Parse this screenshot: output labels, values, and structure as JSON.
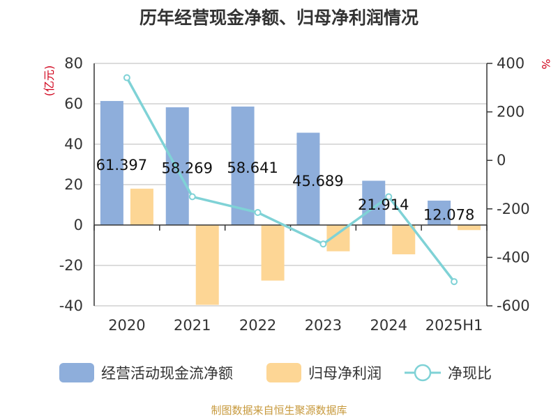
{
  "chart_data": {
    "type": "bar",
    "title": "历年经营现金净额、归母净利润情况",
    "left_axis_unit": "(亿元)",
    "right_axis_unit": "%",
    "categories": [
      "2020",
      "2021",
      "2022",
      "2023",
      "2024",
      "2025H1"
    ],
    "series": [
      {
        "name": "经营活动现金流净额",
        "type": "bar",
        "axis": "left",
        "values": [
          61.397,
          58.269,
          58.641,
          45.689,
          21.914,
          12.078
        ],
        "labels": [
          "61.397",
          "58.269",
          "58.641",
          "45.689",
          "21.914",
          "12.078"
        ]
      },
      {
        "name": "归母净利润",
        "type": "bar",
        "axis": "left",
        "values": [
          18.0,
          -39.5,
          -27.5,
          -13.0,
          -14.5,
          -2.5
        ]
      },
      {
        "name": "净现比",
        "type": "line",
        "axis": "right",
        "values": [
          341,
          -150,
          -215,
          -345,
          -150,
          -500
        ]
      }
    ],
    "left_axis": {
      "ticks": [
        "80",
        "60",
        "40",
        "20",
        "0",
        "-20",
        "-40"
      ],
      "range": [
        -40,
        80
      ]
    },
    "right_axis": {
      "ticks": [
        "400",
        "200",
        "0",
        "-200",
        "-400",
        "-600"
      ],
      "range": [
        -600,
        400
      ]
    },
    "grid": true,
    "legend_position": "bottom",
    "colors": {
      "cash_flow": "#8eaedb",
      "net_profit": "#fdd695",
      "ratio_line": "#7fd2d6",
      "grid": "#c8c8c8",
      "axis": "#333333"
    }
  },
  "source": "制图数据来自恒生聚源数据库"
}
